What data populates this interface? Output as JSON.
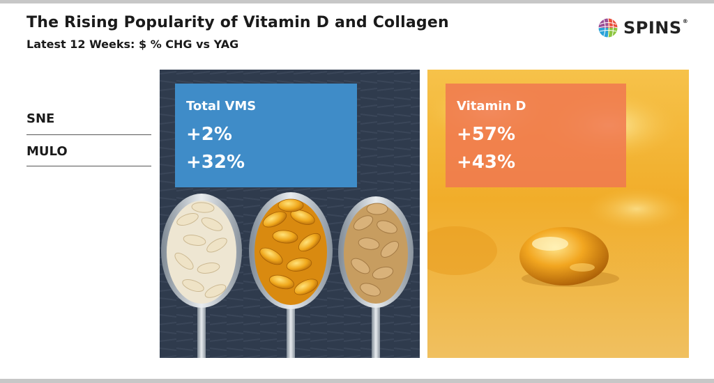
{
  "header": {
    "title": "The Rising Popularity of Vitamin D and Collagen",
    "subtitle": "Latest 12 Weeks: $ % CHG vs YAG"
  },
  "logo": {
    "text": "SPINS",
    "mark": "®",
    "icon": "globe-icon"
  },
  "rows": [
    "SNE",
    "MULO"
  ],
  "panels": [
    {
      "category": "Total VMS",
      "sne": "+2%",
      "mulo": "+32%",
      "color": "#3f8cc8",
      "image": "pills-on-spoons"
    },
    {
      "category": "Vitamin D",
      "sne": "+57%",
      "mulo": "+43%",
      "color": "#f07850",
      "image": "softgel-capsule"
    }
  ]
}
